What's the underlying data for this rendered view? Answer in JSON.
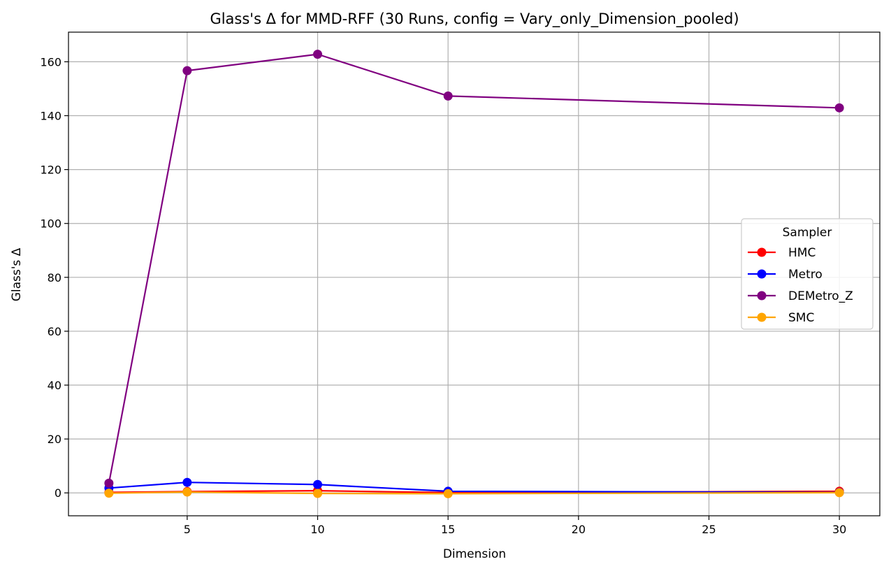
{
  "chart_data": {
    "type": "line",
    "title": "Glass's Δ for MMD-RFF (30 Runs, config = Vary_only_Dimension_pooled)",
    "xlabel": "Dimension",
    "ylabel": "Glass's Δ",
    "x": [
      2,
      5,
      10,
      15,
      30
    ],
    "xlim": [
      0.45,
      31.55
    ],
    "ylim": [
      -8.5,
      171
    ],
    "xticks": [
      5,
      10,
      15,
      20,
      25,
      30
    ],
    "yticks": [
      0,
      20,
      40,
      60,
      80,
      100,
      120,
      140,
      160
    ],
    "grid": true,
    "legend": {
      "title": "Sampler",
      "placement": "center-right"
    },
    "series": [
      {
        "name": "HMC",
        "color": "#ff0000",
        "values": [
          0.2,
          0.5,
          0.8,
          0.1,
          0.6
        ]
      },
      {
        "name": "Metro",
        "color": "#0000ff",
        "values": [
          1.8,
          3.9,
          3.1,
          0.6,
          0.2
        ]
      },
      {
        "name": "DEMetro_Z",
        "color": "#800080",
        "values": [
          3.6,
          156.7,
          162.8,
          147.3,
          142.9
        ]
      },
      {
        "name": "SMC",
        "color": "#ffa500",
        "values": [
          -0.1,
          0.3,
          -0.2,
          -0.3,
          0.1
        ]
      }
    ]
  }
}
